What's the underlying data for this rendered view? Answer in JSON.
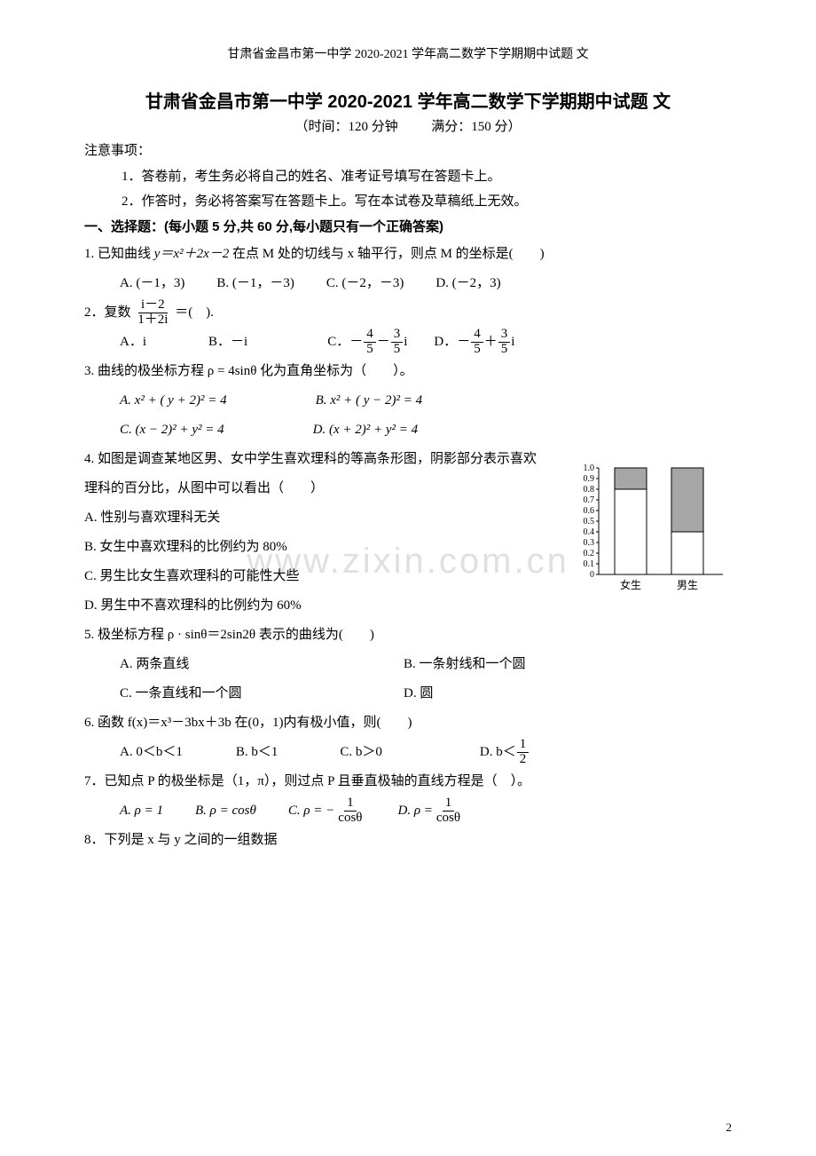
{
  "running_header": "甘肃省金昌市第一中学 2020-2021 学年高二数学下学期期中试题 文",
  "title": "甘肃省金昌市第一中学 2020-2021 学年高二数学下学期期中试题 文",
  "subtitle_time": "（时间：120 分钟",
  "subtitle_score": "满分：150 分）",
  "notes_head": "注意事项：",
  "note1": "1．答卷前，考生务必将自己的姓名、准考证号填写在答题卡上。",
  "note2": "2．作答时，务必将答案写在答题卡上。写在本试卷及草稿纸上无效。",
  "section1": "一、选择题：(每小题 5 分,共 60 分,每小题只有一个正确答案)",
  "q1": {
    "stem_pre": "1. 已知曲线 ",
    "stem_math": "y＝x²＋2x－2",
    "stem_post": " 在点 M 处的切线与 x 轴平行，则点 M 的坐标是(　　)",
    "A": "A. (－1，3)",
    "B": "B. (－1，－3)",
    "C": "C. (－2，－3)",
    "D": "D. (－2，3)"
  },
  "q2": {
    "stem_pre": "2．复数",
    "frac_num": "i－2",
    "frac_den": "1＋2i",
    "stem_post": "＝(　).",
    "A": "A．i",
    "B": "B．－i",
    "C_pre": "C．－",
    "C_num1": "4",
    "C_den1": "5",
    "C_mid": "－",
    "C_num2": "3",
    "C_den2": "5",
    "C_post": "i",
    "D_pre": "D．－",
    "D_num1": "4",
    "D_den1": "5",
    "D_mid": "＋",
    "D_num2": "3",
    "D_den2": "5",
    "D_post": "i"
  },
  "q3": {
    "stem": "3. 曲线的极坐标方程 ρ = 4sinθ 化为直角坐标为（　　）。",
    "A": "A. x² + ( y + 2)² = 4",
    "B": "B. x² + ( y − 2)² = 4",
    "C": "C. (x − 2)² + y² = 4",
    "D": "D. (x + 2)² + y² = 4"
  },
  "q4": {
    "stem": "4. 如图是调查某地区男、女中学生喜欢理科的等高条形图，阴影部分表示喜欢理科的百分比，从图中可以看出（　　）",
    "A": "A. 性别与喜欢理科无关",
    "B": "B. 女生中喜欢理科的比例约为 80%",
    "C": "C. 男生比女生喜欢理科的可能性大些",
    "D": "D. 男生中不喜欢理科的比例约为 60%",
    "chart": {
      "type": "stacked-bar",
      "categories": [
        "女生",
        "男生"
      ],
      "yticks": [
        "0",
        "0.1",
        "0.2",
        "0.3",
        "0.4",
        "0.5",
        "0.6",
        "0.7",
        "0.8",
        "0.9",
        "1.0"
      ],
      "female_shade": 0.2,
      "male_shade": 0.6,
      "bar_fill_color": "#ffffff",
      "shade_color": "#a6a6a6",
      "axis_color": "#000000",
      "bar_border": "#000000",
      "label_fontsize": 12,
      "tick_fontsize": 10
    }
  },
  "q5": {
    "stem": "5. 极坐标方程 ρ · sinθ＝2sin2θ 表示的曲线为(　　)",
    "A": "A. 两条直线",
    "B": "B. 一条射线和一个圆",
    "C": "C. 一条直线和一个圆",
    "D": "D. 圆"
  },
  "q6": {
    "stem": "6. 函数 f(x)＝x³－3bx＋3b 在(0，1)内有极小值，则(　　)",
    "A": "A. 0＜b＜1",
    "B": "B. b＜1",
    "C": "C. b＞0",
    "D_pre": "D. b＜",
    "D_num": "1",
    "D_den": "2"
  },
  "q7": {
    "stem": "7．已知点 P 的极坐标是（1，π），则过点 P 且垂直极轴的直线方程是（　）。",
    "A": "A. ρ = 1",
    "B": "B. ρ = cosθ",
    "C_pre": "C. ρ = −",
    "C_num": "1",
    "C_den": "cosθ",
    "D_pre": "D. ρ = ",
    "D_num": "1",
    "D_den": "cosθ"
  },
  "q8": {
    "stem": "8．下列是 x 与 y 之间的一组数据"
  },
  "watermark": "www.zixin.com.cn",
  "page_num": "2"
}
